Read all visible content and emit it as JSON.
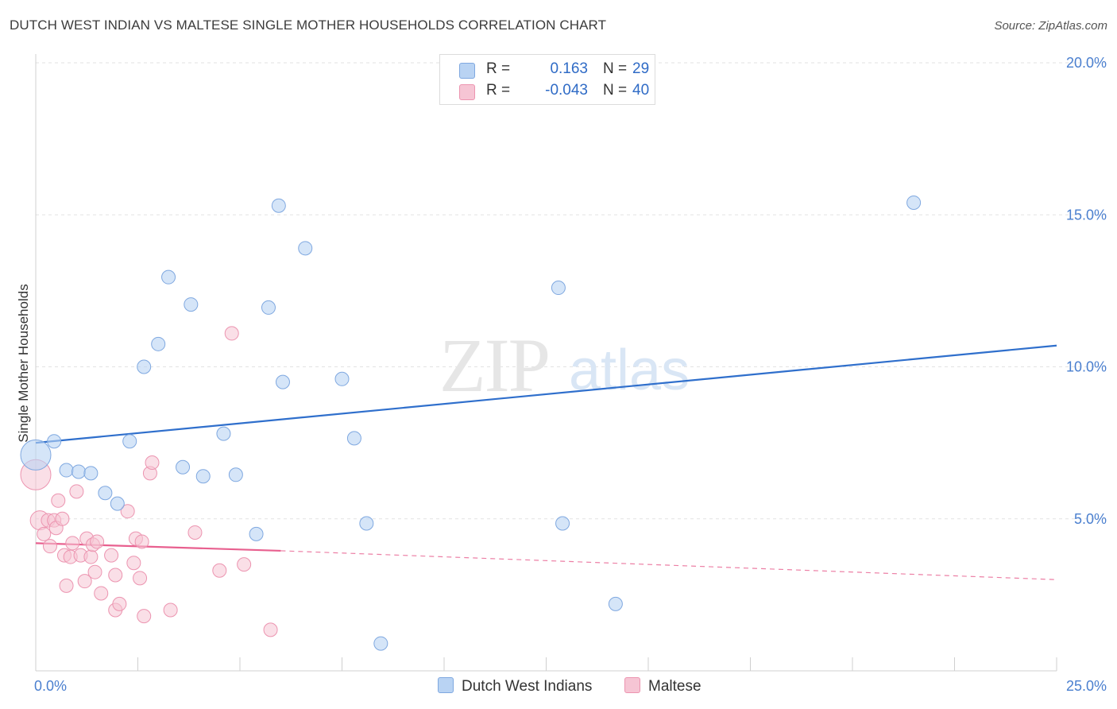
{
  "title": "DUTCH WEST INDIAN VS MALTESE SINGLE MOTHER HOUSEHOLDS CORRELATION CHART",
  "source": "Source: ZipAtlas.com",
  "watermark": {
    "zip": "ZIP",
    "atlas": "atlas"
  },
  "colors": {
    "blue_fill": "#b9d3f3",
    "blue_stroke": "#7fa8e0",
    "blue_line": "#2f6fcc",
    "pink_fill": "#f6c5d4",
    "pink_stroke": "#ec94b0",
    "pink_line": "#e8608f",
    "tick_text": "#4a7fcf",
    "grid": "#e2e2e2"
  },
  "legend": {
    "rows": [
      {
        "r_label": "R =",
        "r_value": "0.163",
        "n_label": "N =",
        "n_value": "29",
        "color": "#b9d3f3",
        "border": "#7fa8e0"
      },
      {
        "r_label": "R =",
        "r_value": "-0.043",
        "n_label": "N =",
        "n_value": "40",
        "color": "#f6c5d4",
        "border": "#ec94b0"
      }
    ]
  },
  "bottom_legend": [
    {
      "label": "Dutch West Indians",
      "color": "#b9d3f3",
      "border": "#7fa8e0"
    },
    {
      "label": "Maltese",
      "color": "#f6c5d4",
      "border": "#ec94b0"
    }
  ],
  "chart_data": {
    "type": "scatter",
    "title": "DUTCH WEST INDIAN VS MALTESE SINGLE MOTHER HOUSEHOLDS CORRELATION CHART",
    "xlabel": "",
    "ylabel": "Single Mother Households",
    "xlim": [
      0,
      25
    ],
    "ylim": [
      0,
      20
    ],
    "x_tick_labels": [
      "0.0%",
      "25.0%"
    ],
    "y_ticks": [
      5,
      10,
      15,
      20
    ],
    "y_tick_labels": [
      "5.0%",
      "10.0%",
      "15.0%",
      "20.0%"
    ],
    "grid": "horizontal dashed",
    "legend_position": "top-center",
    "series": [
      {
        "name": "Dutch West Indians",
        "color": "#b9d3f3",
        "points": [
          [
            0.0,
            7.1,
            "large"
          ],
          [
            0.45,
            7.55
          ],
          [
            0.75,
            6.6
          ],
          [
            1.05,
            6.55
          ],
          [
            1.35,
            6.5
          ],
          [
            1.7,
            5.85
          ],
          [
            2.0,
            5.5
          ],
          [
            2.3,
            7.55
          ],
          [
            2.65,
            10.0
          ],
          [
            3.0,
            10.75
          ],
          [
            3.25,
            12.95
          ],
          [
            3.6,
            6.7
          ],
          [
            3.8,
            12.05
          ],
          [
            4.1,
            6.4
          ],
          [
            4.6,
            7.8
          ],
          [
            4.9,
            6.45
          ],
          [
            5.4,
            4.5
          ],
          [
            5.7,
            11.95
          ],
          [
            5.95,
            15.3
          ],
          [
            6.05,
            9.5
          ],
          [
            6.6,
            13.9
          ],
          [
            7.5,
            9.6
          ],
          [
            7.8,
            7.65
          ],
          [
            8.1,
            4.85
          ],
          [
            8.45,
            0.9
          ],
          [
            12.8,
            12.6
          ],
          [
            12.9,
            4.85
          ],
          [
            14.2,
            2.2
          ],
          [
            21.5,
            15.4
          ]
        ],
        "trend": {
          "x": [
            0,
            25
          ],
          "y": [
            7.5,
            10.7
          ],
          "style": "solid"
        }
      },
      {
        "name": "Maltese",
        "color": "#f6c5d4",
        "points": [
          [
            0.0,
            6.45,
            "large"
          ],
          [
            0.1,
            4.95,
            "medium"
          ],
          [
            0.2,
            4.5
          ],
          [
            0.3,
            4.95
          ],
          [
            0.35,
            4.1
          ],
          [
            0.45,
            4.95
          ],
          [
            0.5,
            4.7
          ],
          [
            0.55,
            5.6
          ],
          [
            0.65,
            5.0
          ],
          [
            0.7,
            3.8
          ],
          [
            0.75,
            2.8
          ],
          [
            0.85,
            3.75
          ],
          [
            0.9,
            4.2
          ],
          [
            1.0,
            5.9
          ],
          [
            1.1,
            3.8
          ],
          [
            1.2,
            2.95
          ],
          [
            1.25,
            4.35
          ],
          [
            1.35,
            3.75
          ],
          [
            1.4,
            4.15
          ],
          [
            1.45,
            3.25
          ],
          [
            1.5,
            4.25
          ],
          [
            1.6,
            2.55
          ],
          [
            1.85,
            3.8
          ],
          [
            1.95,
            2.0
          ],
          [
            1.95,
            3.15
          ],
          [
            2.05,
            2.2
          ],
          [
            2.25,
            5.25
          ],
          [
            2.4,
            3.55
          ],
          [
            2.45,
            4.35
          ],
          [
            2.55,
            3.05
          ],
          [
            2.6,
            4.25
          ],
          [
            2.65,
            1.8
          ],
          [
            2.8,
            6.5
          ],
          [
            2.85,
            6.85
          ],
          [
            3.3,
            2.0
          ],
          [
            3.9,
            4.55
          ],
          [
            4.5,
            3.3
          ],
          [
            4.8,
            11.1
          ],
          [
            5.1,
            3.5
          ],
          [
            5.75,
            1.35
          ]
        ],
        "trend": {
          "x": [
            0,
            6
          ],
          "y": [
            4.2,
            3.95
          ],
          "style": "solid",
          "extension": {
            "x": [
              6,
              25
            ],
            "y": [
              3.95,
              3.0
            ],
            "style": "dashed"
          }
        }
      }
    ]
  }
}
